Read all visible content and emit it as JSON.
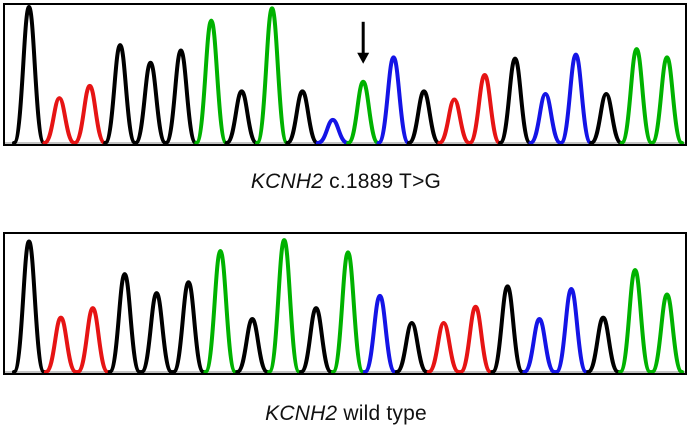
{
  "colors": {
    "A": "#00b200",
    "C": "#1414e6",
    "G": "#000000",
    "T": "#e61414",
    "arrow": "#000000",
    "border": "#000000"
  },
  "icons": {
    "variant_marker": "down-arrow-icon"
  },
  "panels": [
    {
      "id": "mutant",
      "caption": {
        "gene": "KCNH2",
        "text": "c.1889 T>G"
      },
      "arrow_at_peak": 11,
      "peaks": [
        {
          "base": "G",
          "height": 1.0
        },
        {
          "base": "T",
          "height": 0.33
        },
        {
          "base": "T",
          "height": 0.42
        },
        {
          "base": "G",
          "height": 0.72
        },
        {
          "base": "G",
          "height": 0.59
        },
        {
          "base": "G",
          "height": 0.68
        },
        {
          "base": "A",
          "height": 0.9
        },
        {
          "base": "G",
          "height": 0.38
        },
        {
          "base": "A",
          "height": 0.99
        },
        {
          "base": "G",
          "height": 0.38
        },
        {
          "base": "C",
          "height": 0.17
        },
        {
          "base": "A",
          "height": 0.45
        },
        {
          "base": "C",
          "height": 0.63
        },
        {
          "base": "G",
          "height": 0.38
        },
        {
          "base": "T",
          "height": 0.32
        },
        {
          "base": "T",
          "height": 0.5
        },
        {
          "base": "G",
          "height": 0.62
        },
        {
          "base": "C",
          "height": 0.36
        },
        {
          "base": "C",
          "height": 0.65
        },
        {
          "base": "G",
          "height": 0.36
        },
        {
          "base": "A",
          "height": 0.69
        },
        {
          "base": "A",
          "height": 0.63
        }
      ]
    },
    {
      "id": "wildtype",
      "caption": {
        "gene": "KCNH2",
        "text": "wild type"
      },
      "arrow_at_peak": null,
      "peaks": [
        {
          "base": "G",
          "height": 0.96
        },
        {
          "base": "T",
          "height": 0.4
        },
        {
          "base": "T",
          "height": 0.47
        },
        {
          "base": "G",
          "height": 0.72
        },
        {
          "base": "G",
          "height": 0.58
        },
        {
          "base": "G",
          "height": 0.66
        },
        {
          "base": "A",
          "height": 0.89
        },
        {
          "base": "G",
          "height": 0.39
        },
        {
          "base": "A",
          "height": 0.97
        },
        {
          "base": "G",
          "height": 0.47
        },
        {
          "base": "A",
          "height": 0.88
        },
        {
          "base": "C",
          "height": 0.56
        },
        {
          "base": "G",
          "height": 0.36
        },
        {
          "base": "T",
          "height": 0.36
        },
        {
          "base": "T",
          "height": 0.48
        },
        {
          "base": "G",
          "height": 0.63
        },
        {
          "base": "C",
          "height": 0.39
        },
        {
          "base": "C",
          "height": 0.61
        },
        {
          "base": "G",
          "height": 0.4
        },
        {
          "base": "A",
          "height": 0.75
        },
        {
          "base": "A",
          "height": 0.57
        }
      ]
    }
  ]
}
